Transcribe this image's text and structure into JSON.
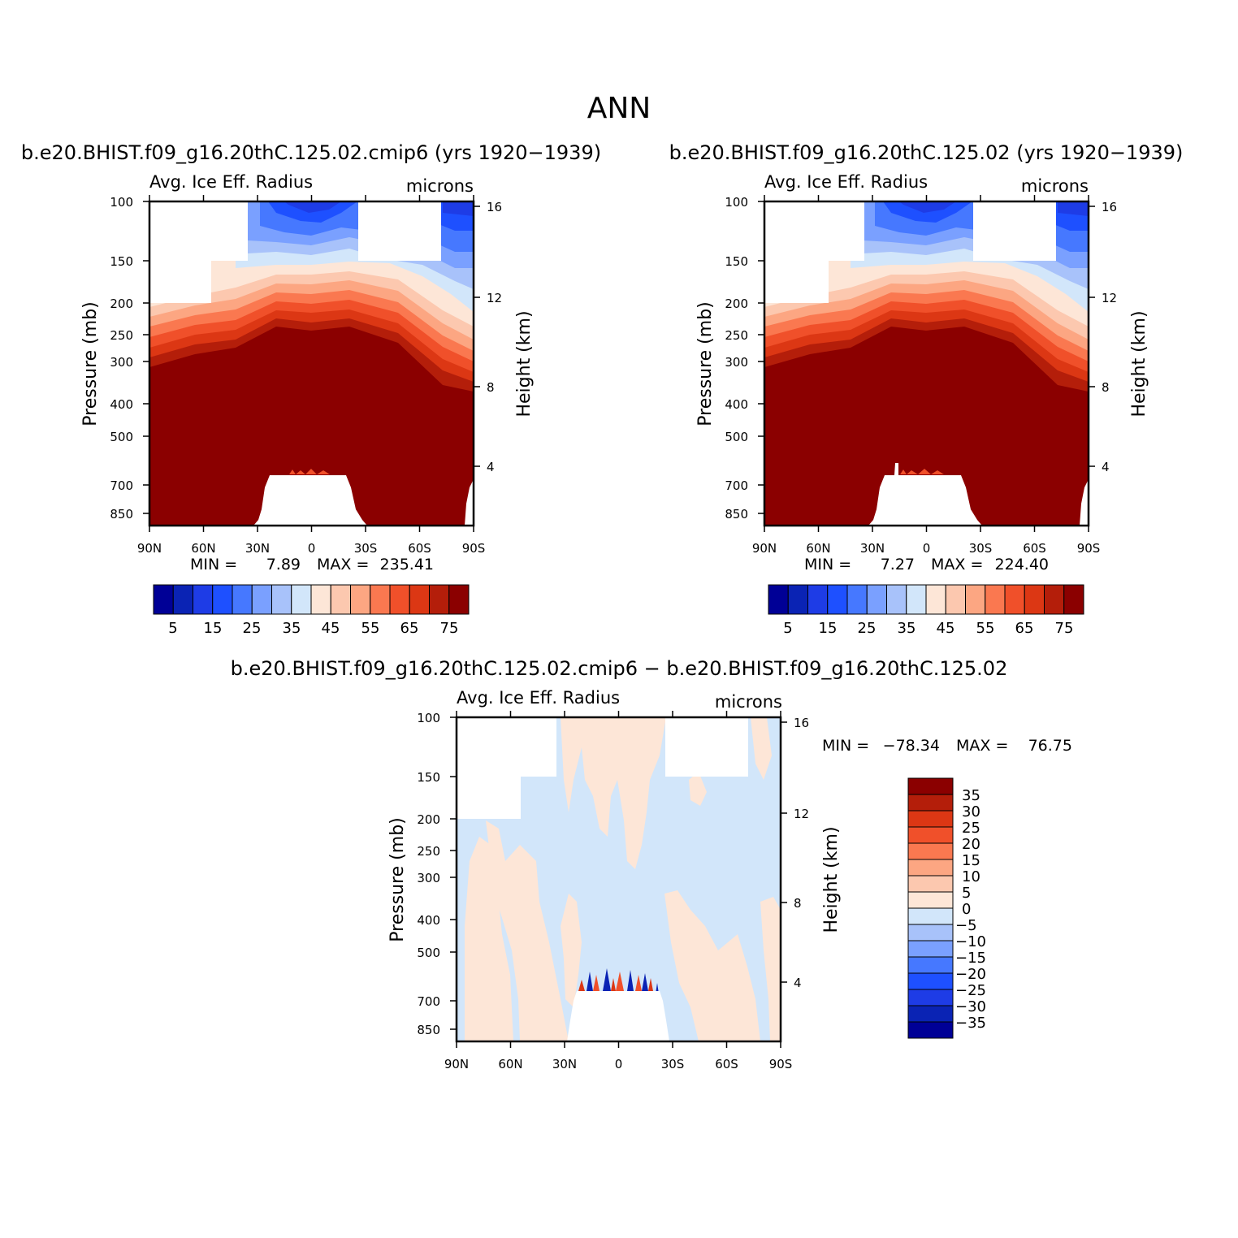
{
  "figure_title": "ANN",
  "palette_abs": [
    "#000096",
    "#0a23b4",
    "#1e3ce6",
    "#1e50ff",
    "#4678ff",
    "#7aa0ff",
    "#a8c2fa",
    "#d2e6fa",
    "#fde6d7",
    "#fcc8af",
    "#fca682",
    "#fa7850",
    "#f0502a",
    "#dc3714",
    "#b41e0a",
    "#8b0000"
  ],
  "palette_diff": [
    "#000096",
    "#0a23b4",
    "#1e3ce6",
    "#1e50ff",
    "#4678ff",
    "#7aa0ff",
    "#a8c2fa",
    "#d2e6fa",
    "#fde6d7",
    "#fcc8af",
    "#fca682",
    "#fa7850",
    "#f0502a",
    "#dc3714",
    "#b41e0a",
    "#8b0000"
  ],
  "chart_data": [
    {
      "type": "heatmap",
      "id": "model",
      "title": "b.e20.BHIST.f09_g16.20thC.125.02.cmip6 (yrs 1920−1939)",
      "subtitle_left": "Avg. Ice Eff. Radius",
      "subtitle_right": "microns",
      "xlabel": "",
      "ylabel": "Pressure (mb)",
      "ylabel_right": "Height (km)",
      "x_ticks": [
        "90N",
        "60N",
        "30N",
        "0",
        "30S",
        "60S",
        "90S"
      ],
      "y_ticks": [
        "100",
        "150",
        "200",
        "250",
        "300",
        "400",
        "500",
        "700",
        "850"
      ],
      "y_right_ticks": [
        "16",
        "12",
        "8",
        "4"
      ],
      "min_label": "MIN =",
      "min_value": "7.89",
      "max_label": "MAX =",
      "max_value": "235.41",
      "colorbar_labels": [
        "5",
        "15",
        "25",
        "35",
        "45",
        "55",
        "65",
        "75"
      ],
      "ylim": [
        1000,
        100
      ]
    },
    {
      "type": "heatmap",
      "id": "obs",
      "title": "b.e20.BHIST.f09_g16.20thC.125.02 (yrs 1920−1939)",
      "subtitle_left": "Avg. Ice Eff. Radius",
      "subtitle_right": "microns",
      "xlabel": "",
      "ylabel": "Pressure (mb)",
      "ylabel_right": "Height (km)",
      "x_ticks": [
        "90N",
        "60N",
        "30N",
        "0",
        "30S",
        "60S",
        "90S"
      ],
      "y_ticks": [
        "100",
        "150",
        "200",
        "250",
        "300",
        "400",
        "500",
        "700",
        "850"
      ],
      "y_right_ticks": [
        "16",
        "12",
        "8",
        "4"
      ],
      "min_label": "MIN =",
      "min_value": "7.27",
      "max_label": "MAX =",
      "max_value": "224.40",
      "colorbar_labels": [
        "5",
        "15",
        "25",
        "35",
        "45",
        "55",
        "65",
        "75"
      ],
      "ylim": [
        1000,
        100
      ]
    },
    {
      "type": "heatmap",
      "id": "diff",
      "title": "b.e20.BHIST.f09_g16.20thC.125.02.cmip6 − b.e20.BHIST.f09_g16.20thC.125.02",
      "subtitle_left": "Avg. Ice Eff. Radius",
      "subtitle_right": "microns",
      "xlabel": "",
      "ylabel": "Pressure (mb)",
      "ylabel_right": "Height (km)",
      "x_ticks": [
        "90N",
        "60N",
        "30N",
        "0",
        "30S",
        "60S",
        "90S"
      ],
      "y_ticks": [
        "100",
        "150",
        "200",
        "250",
        "300",
        "400",
        "500",
        "700",
        "850"
      ],
      "y_right_ticks": [
        "16",
        "12",
        "8",
        "4"
      ],
      "min_label": "MIN =",
      "min_value": "−78.34",
      "max_label": "MAX =",
      "max_value": "76.75",
      "colorbar_labels": [
        "35",
        "30",
        "25",
        "20",
        "15",
        "10",
        "5",
        "0",
        "−5",
        "−10",
        "−15",
        "−20",
        "−25",
        "−30",
        "−35"
      ],
      "ylim": [
        1000,
        100
      ]
    }
  ]
}
